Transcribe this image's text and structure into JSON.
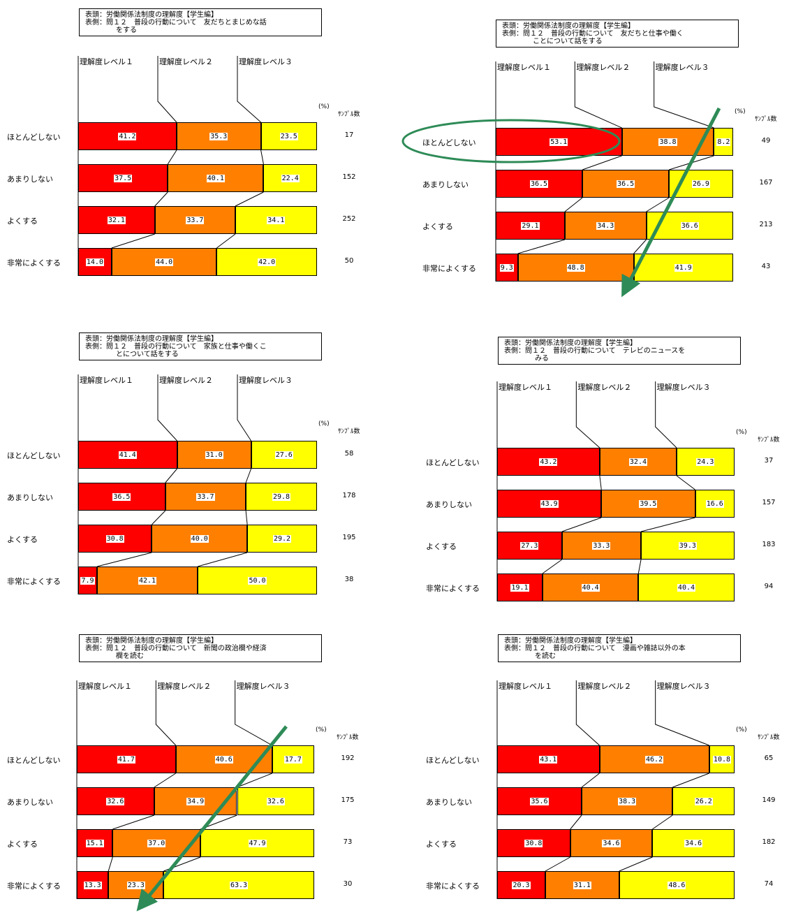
{
  "colors": {
    "level1": "#ff0000",
    "level2": "#ff8000",
    "level3": "#ffff00",
    "annotation": "#2e8b57"
  },
  "common": {
    "levels": [
      "理解度レベル１",
      "理解度レベル２",
      "理解度レベル３"
    ],
    "pct_unit": "(%)",
    "n_header": "ｻﾝﾌﾟﾙ数",
    "rows": [
      "ほとんどしない",
      "あまりしない",
      "よくする",
      "非常によくする"
    ]
  },
  "chart_data": [
    {
      "type": "bar",
      "stacked": true,
      "orientation": "horizontal",
      "title_lines": [
        "表頭：労働関係法制度の理解度【学生編】",
        "表側：問１２　普段の行動について　友だちとまじめな話",
        "をする"
      ],
      "categories": [
        "ほとんどしない",
        "あまりしない",
        "よくする",
        "非常によくする"
      ],
      "series": [
        {
          "name": "理解度レベル１",
          "values": [
            41.2,
            37.5,
            32.1,
            14.0
          ]
        },
        {
          "name": "理解度レベル２",
          "values": [
            35.3,
            40.1,
            33.7,
            44.0
          ]
        },
        {
          "name": "理解度レベル３",
          "values": [
            23.5,
            22.4,
            34.1,
            42.0
          ]
        }
      ],
      "sample_sizes": [
        17,
        152,
        252,
        50
      ],
      "labels": [
        [
          "41.2",
          "35.3",
          "23.5"
        ],
        [
          "37.5",
          "40.1",
          "22.4"
        ],
        [
          "32.1",
          "33.7",
          "34.1"
        ],
        [
          "14.0",
          "44.0",
          "42.0"
        ]
      ],
      "ylabel": "(%)"
    },
    {
      "type": "bar",
      "stacked": true,
      "orientation": "horizontal",
      "title_lines": [
        "表頭：労働関係法制度の理解度【学生編】",
        "表側：問１２　普段の行動について　友だちと仕事や働く",
        "ことについて話をする"
      ],
      "categories": [
        "ほとんどしない",
        "あまりしない",
        "よくする",
        "非常によくする"
      ],
      "series": [
        {
          "name": "理解度レベル１",
          "values": [
            53.1,
            36.5,
            29.1,
            9.3
          ]
        },
        {
          "name": "理解度レベル２",
          "values": [
            38.8,
            36.5,
            34.3,
            48.8
          ]
        },
        {
          "name": "理解度レベル３",
          "values": [
            8.2,
            26.9,
            36.6,
            41.9
          ]
        }
      ],
      "sample_sizes": [
        49,
        167,
        213,
        43
      ],
      "labels": [
        [
          "53.1",
          "38.8",
          "8.2"
        ],
        [
          "36.5",
          "36.5",
          "26.9"
        ],
        [
          "29.1",
          "34.3",
          "36.6"
        ],
        [
          "9.3",
          "48.8",
          "41.9"
        ]
      ],
      "ylabel": "(%)",
      "annotations": [
        "circle-first-row",
        "arrow-down"
      ]
    },
    {
      "type": "bar",
      "stacked": true,
      "orientation": "horizontal",
      "title_lines": [
        "表頭：労働関係法制度の理解度【学生編】",
        "表側：問１２　普段の行動について　家族と仕事や働くこ",
        "とについて話をする"
      ],
      "categories": [
        "ほとんどしない",
        "あまりしない",
        "よくする",
        "非常によくする"
      ],
      "series": [
        {
          "name": "理解度レベル１",
          "values": [
            41.4,
            36.5,
            30.8,
            7.9
          ]
        },
        {
          "name": "理解度レベル２",
          "values": [
            31.0,
            33.7,
            40.0,
            42.1
          ]
        },
        {
          "name": "理解度レベル３",
          "values": [
            27.6,
            29.8,
            29.2,
            50.0
          ]
        }
      ],
      "sample_sizes": [
        58,
        178,
        195,
        38
      ],
      "labels": [
        [
          "41.4",
          "31.0",
          "27.6"
        ],
        [
          "36.5",
          "33.7",
          "29.8"
        ],
        [
          "30.8",
          "40.0",
          "29.2"
        ],
        [
          "7.9",
          "42.1",
          "50.0"
        ]
      ],
      "ylabel": "(%)"
    },
    {
      "type": "bar",
      "stacked": true,
      "orientation": "horizontal",
      "title_lines": [
        "表頭：労働関係法制度の理解度【学生編】",
        "表側：問１２　普段の行動について　テレビのニュースを",
        "みる"
      ],
      "categories": [
        "ほとんどしない",
        "あまりしない",
        "よくする",
        "非常によくする"
      ],
      "series": [
        {
          "name": "理解度レベル１",
          "values": [
            43.2,
            43.9,
            27.3,
            19.1
          ]
        },
        {
          "name": "理解度レベル２",
          "values": [
            32.4,
            39.5,
            33.3,
            40.4
          ]
        },
        {
          "name": "理解度レベル３",
          "values": [
            24.3,
            16.6,
            39.3,
            40.4
          ]
        }
      ],
      "sample_sizes": [
        37,
        157,
        183,
        94
      ],
      "labels": [
        [
          "43.2",
          "32.4",
          "24.3"
        ],
        [
          "43.9",
          "39.5",
          "16.6"
        ],
        [
          "27.3",
          "33.3",
          "39.3"
        ],
        [
          "19.1",
          "40.4",
          "40.4"
        ]
      ],
      "ylabel": "(%)"
    },
    {
      "type": "bar",
      "stacked": true,
      "orientation": "horizontal",
      "title_lines": [
        "表頭：労働関係法制度の理解度【学生編】",
        "表側：問１２　普段の行動について　新聞の政治欄や経済",
        "欄を読む"
      ],
      "categories": [
        "ほとんどしない",
        "あまりしない",
        "よくする",
        "非常によくする"
      ],
      "series": [
        {
          "name": "理解度レベル１",
          "values": [
            41.7,
            32.6,
            15.1,
            13.3
          ]
        },
        {
          "name": "理解度レベル２",
          "values": [
            40.6,
            34.9,
            37.0,
            23.3
          ]
        },
        {
          "name": "理解度レベル３",
          "values": [
            17.7,
            32.6,
            47.9,
            63.3
          ]
        }
      ],
      "sample_sizes": [
        192,
        175,
        73,
        30
      ],
      "labels": [
        [
          "41.7",
          "40.6",
          "17.7"
        ],
        [
          "32.6",
          "34.9",
          "32.6"
        ],
        [
          "15.1",
          "37.0",
          "47.9"
        ],
        [
          "13.3",
          "23.3",
          "63.3"
        ]
      ],
      "ylabel": "(%)",
      "annotations": [
        "arrow-down"
      ]
    },
    {
      "type": "bar",
      "stacked": true,
      "orientation": "horizontal",
      "title_lines": [
        "表頭：労働関係法制度の理解度【学生編】",
        "表側：問１２　普段の行動について　漫画や雑誌以外の本",
        "を読む"
      ],
      "categories": [
        "ほとんどしない",
        "あまりしない",
        "よくする",
        "非常によくする"
      ],
      "series": [
        {
          "name": "理解度レベル１",
          "values": [
            43.1,
            35.6,
            30.8,
            20.3
          ]
        },
        {
          "name": "理解度レベル２",
          "values": [
            46.2,
            38.3,
            34.6,
            31.1
          ]
        },
        {
          "name": "理解度レベル３",
          "values": [
            10.8,
            26.2,
            34.6,
            48.6
          ]
        }
      ],
      "sample_sizes": [
        65,
        149,
        182,
        74
      ],
      "labels": [
        [
          "43.1",
          "46.2",
          "10.8"
        ],
        [
          "35.6",
          "38.3",
          "26.2"
        ],
        [
          "30.8",
          "34.6",
          "34.6"
        ],
        [
          "20.3",
          "31.1",
          "48.6"
        ]
      ],
      "ylabel": "(%)"
    }
  ]
}
